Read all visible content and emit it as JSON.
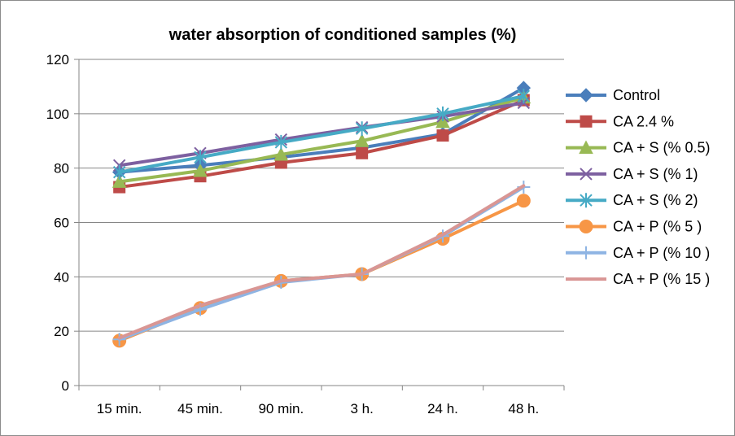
{
  "chart_data": {
    "type": "line",
    "title": "water absorption of conditioned samples (%)",
    "xlabel": "",
    "ylabel": "",
    "categories": [
      "15 min.",
      "45 min.",
      "90 min.",
      "3 h.",
      "24 h.",
      "48 h."
    ],
    "ylim": [
      0,
      120
    ],
    "yticks": [
      0,
      20,
      40,
      60,
      80,
      100,
      120
    ],
    "grid": true,
    "legend_position": "right",
    "series": [
      {
        "name": "Control",
        "color": "#4a7ebb",
        "marker": "diamond",
        "values": [
          78.5,
          81,
          84,
          87.5,
          92.5,
          109.5
        ]
      },
      {
        "name": "CA 2.4 %",
        "color": "#be4b48",
        "marker": "square",
        "values": [
          73,
          77,
          82,
          85.5,
          92,
          105
        ]
      },
      {
        "name": "CA + S (% 0.5)",
        "color": "#98b954",
        "marker": "triangle",
        "values": [
          75,
          79,
          85,
          90,
          97,
          106
        ]
      },
      {
        "name": "CA + S (% 1)",
        "color": "#7d60a0",
        "marker": "x",
        "values": [
          81,
          85.5,
          90.5,
          95,
          99,
          104
        ]
      },
      {
        "name": "CA + S (% 2)",
        "color": "#46aac5",
        "marker": "asterisk",
        "values": [
          78.5,
          84,
          89.5,
          94.5,
          100,
          106.5
        ]
      },
      {
        "name": "CA + P (% 5 )",
        "color": "#f79646",
        "marker": "circle",
        "values": [
          16.5,
          28.5,
          38.5,
          41,
          54,
          68
        ]
      },
      {
        "name": "CA + P (% 10 )",
        "color": "#8eb4e3",
        "marker": "plus",
        "values": [
          17,
          28,
          38,
          41,
          55,
          73
        ]
      },
      {
        "name": "CA + P (% 15  )",
        "color": "#d99694",
        "marker": "none",
        "values": [
          17.5,
          29.5,
          38.5,
          41,
          55.5,
          73.5
        ]
      }
    ]
  }
}
